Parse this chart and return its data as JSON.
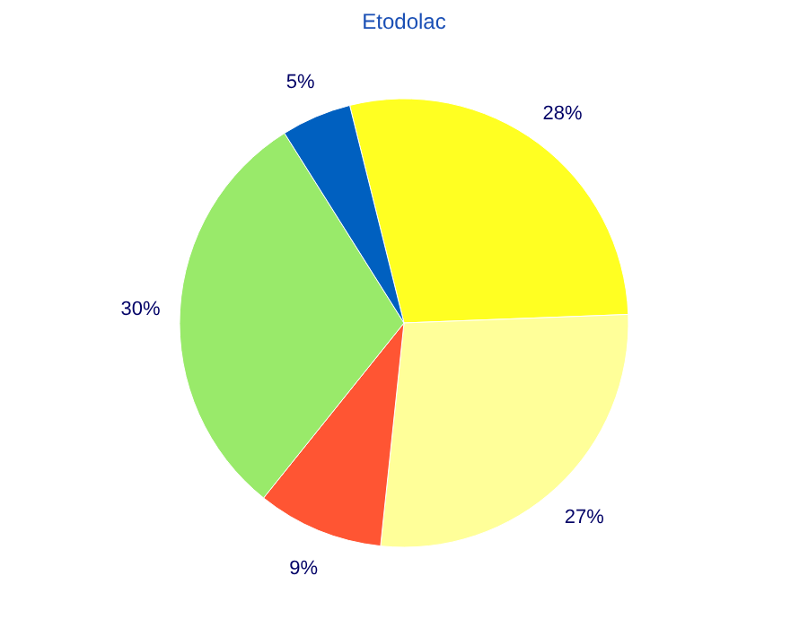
{
  "chart_data": {
    "type": "pie",
    "title": "Etodolac",
    "categories": [
      null,
      null,
      null,
      null,
      null
    ],
    "values": [
      28,
      27,
      9,
      30,
      5
    ],
    "colors": [
      "#ffff22",
      "#ffff99",
      "#ff5533",
      "#99ea6a",
      "#0060c0"
    ],
    "value_labels": [
      "28%",
      "27%",
      "9%",
      "30%",
      "5%"
    ]
  }
}
